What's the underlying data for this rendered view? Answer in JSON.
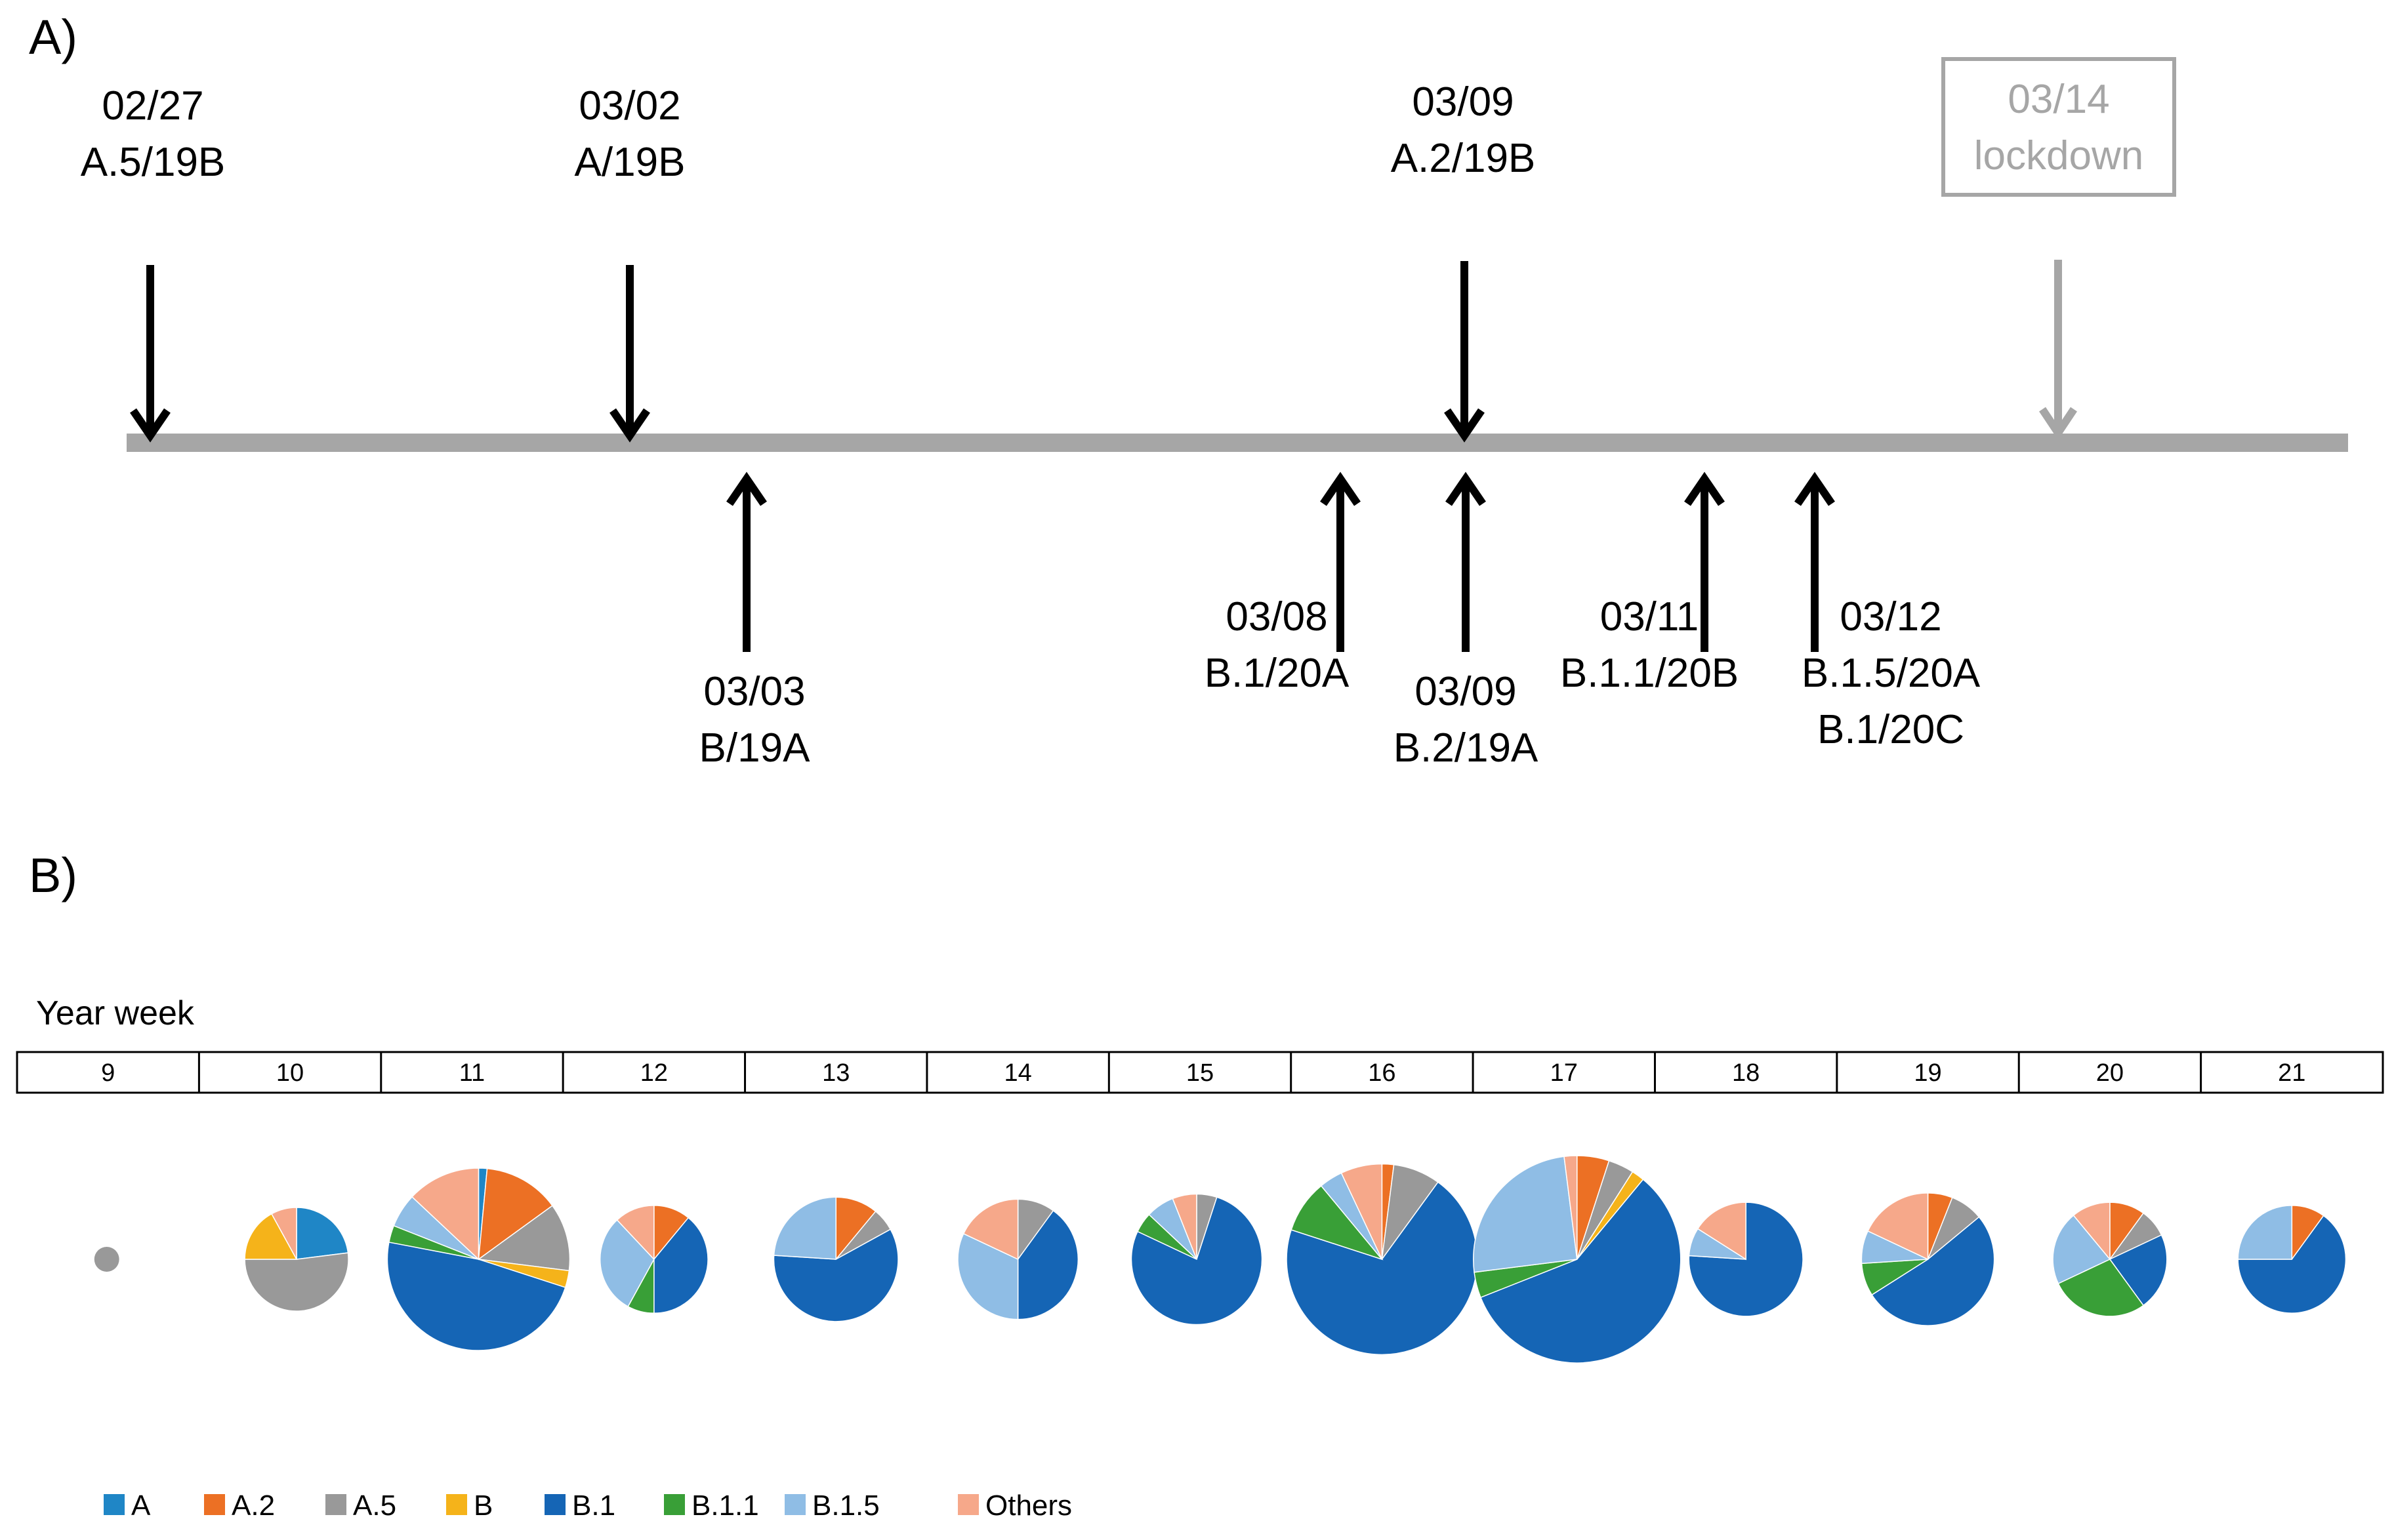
{
  "panel_a": {
    "label": "A)",
    "events_above": [
      {
        "date": "02/27",
        "lineage": "A.5/19B"
      },
      {
        "date": "03/02",
        "lineage": "A/19B"
      },
      {
        "date": "03/09",
        "lineage": "A.2/19B"
      }
    ],
    "lockdown": {
      "date": "03/14",
      "label": "lockdown"
    },
    "events_below": [
      {
        "date": "03/03",
        "lineage": "B/19A"
      },
      {
        "date": "03/08",
        "lineage": "B.1/20A"
      },
      {
        "date": "03/09",
        "lineage": "B.2/19A"
      },
      {
        "date": "03/11",
        "lineage": "B.1.1/20B"
      },
      {
        "date": "03/12",
        "lineage": "B.1.5/20A",
        "lineage2": "B.1/20C"
      }
    ]
  },
  "panel_b": {
    "label": "B)",
    "axis_title": "Year week",
    "weeks": [
      "9",
      "10",
      "11",
      "12",
      "13",
      "14",
      "15",
      "16",
      "17",
      "18",
      "19",
      "20",
      "21"
    ]
  },
  "colors": {
    "A": "#1f86c6",
    "A.2": "#ec7024",
    "A.5": "#999999",
    "B": "#f5b31a",
    "B.1": "#1565b5",
    "B.1.1": "#399f37",
    "B.1.5": "#8fbde5",
    "Others": "#f6a88a",
    "timeline": "#a6a6a6",
    "lockdown": "#a6a6a6"
  },
  "chart_data": {
    "type": "pie",
    "title": "",
    "xlabel": "Year week",
    "categories": [
      "9",
      "10",
      "11",
      "12",
      "13",
      "14",
      "15",
      "16",
      "17",
      "18",
      "19",
      "20",
      "21"
    ],
    "legend": [
      "A",
      "A.2",
      "A.5",
      "B",
      "B.1",
      "B.1.1",
      "B.1.5",
      "Others"
    ],
    "legend_position": "bottom-left",
    "note": "pie area proportional to number of sequences; shares in percent, clockwise from 12 o'clock",
    "pies": [
      {
        "week": "9",
        "relative_size": 0.12,
        "slices": [
          {
            "lineage": "A.5",
            "share": 100
          }
        ]
      },
      {
        "week": "10",
        "relative_size": 0.5,
        "slices": [
          {
            "lineage": "A",
            "share": 23
          },
          {
            "lineage": "A.5",
            "share": 52
          },
          {
            "lineage": "B",
            "share": 17
          },
          {
            "lineage": "Others",
            "share": 8
          }
        ]
      },
      {
        "week": "11",
        "relative_size": 0.88,
        "slices": [
          {
            "lineage": "A",
            "share": 1.5
          },
          {
            "lineage": "A.2",
            "share": 13.5
          },
          {
            "lineage": "A.5",
            "share": 12
          },
          {
            "lineage": "B",
            "share": 3
          },
          {
            "lineage": "B.1",
            "share": 48
          },
          {
            "lineage": "B.1.1",
            "share": 3
          },
          {
            "lineage": "B.1.5",
            "share": 6
          },
          {
            "lineage": "Others",
            "share": 13
          }
        ]
      },
      {
        "week": "12",
        "relative_size": 0.52,
        "slices": [
          {
            "lineage": "A.2",
            "share": 11
          },
          {
            "lineage": "B.1",
            "share": 39
          },
          {
            "lineage": "B.1.1",
            "share": 8
          },
          {
            "lineage": "B.1.5",
            "share": 30
          },
          {
            "lineage": "Others",
            "share": 12
          }
        ]
      },
      {
        "week": "13",
        "relative_size": 0.6,
        "slices": [
          {
            "lineage": "A.2",
            "share": 11
          },
          {
            "lineage": "A.5",
            "share": 6
          },
          {
            "lineage": "B.1",
            "share": 59
          },
          {
            "lineage": "B.1.5",
            "share": 24
          }
        ]
      },
      {
        "week": "14",
        "relative_size": 0.58,
        "slices": [
          {
            "lineage": "A.5",
            "share": 10
          },
          {
            "lineage": "B.1",
            "share": 40
          },
          {
            "lineage": "B.1.5",
            "share": 32
          },
          {
            "lineage": "Others",
            "share": 18
          }
        ]
      },
      {
        "week": "15",
        "relative_size": 0.63,
        "slices": [
          {
            "lineage": "A.5",
            "share": 5
          },
          {
            "lineage": "B.1",
            "share": 77
          },
          {
            "lineage": "B.1.1",
            "share": 5
          },
          {
            "lineage": "B.1.5",
            "share": 7
          },
          {
            "lineage": "Others",
            "share": 6
          }
        ]
      },
      {
        "week": "16",
        "relative_size": 0.92,
        "slices": [
          {
            "lineage": "A.2",
            "share": 2
          },
          {
            "lineage": "A.5",
            "share": 8
          },
          {
            "lineage": "B.1",
            "share": 70
          },
          {
            "lineage": "B.1.1",
            "share": 9
          },
          {
            "lineage": "B.1.5",
            "share": 4
          },
          {
            "lineage": "Others",
            "share": 7
          }
        ]
      },
      {
        "week": "17",
        "relative_size": 1.0,
        "slices": [
          {
            "lineage": "A.2",
            "share": 5
          },
          {
            "lineage": "A.5",
            "share": 4
          },
          {
            "lineage": "B",
            "share": 2
          },
          {
            "lineage": "B.1",
            "share": 58
          },
          {
            "lineage": "B.1.1",
            "share": 4
          },
          {
            "lineage": "B.1.5",
            "share": 25
          },
          {
            "lineage": "Others",
            "share": 2
          }
        ]
      },
      {
        "week": "18",
        "relative_size": 0.55,
        "slices": [
          {
            "lineage": "B.1",
            "share": 76
          },
          {
            "lineage": "B.1.5",
            "share": 8
          },
          {
            "lineage": "Others",
            "share": 16
          }
        ]
      },
      {
        "week": "19",
        "relative_size": 0.64,
        "slices": [
          {
            "lineage": "A.2",
            "share": 6
          },
          {
            "lineage": "A.5",
            "share": 8
          },
          {
            "lineage": "B.1",
            "share": 52
          },
          {
            "lineage": "B.1.1",
            "share": 8
          },
          {
            "lineage": "B.1.5",
            "share": 8
          },
          {
            "lineage": "Others",
            "share": 18
          }
        ]
      },
      {
        "week": "20",
        "relative_size": 0.55,
        "slices": [
          {
            "lineage": "A.2",
            "share": 10
          },
          {
            "lineage": "A.5",
            "share": 8
          },
          {
            "lineage": "B.1",
            "share": 22
          },
          {
            "lineage": "B.1.1",
            "share": 28
          },
          {
            "lineage": "B.1.5",
            "share": 21
          },
          {
            "lineage": "Others",
            "share": 11
          }
        ]
      },
      {
        "week": "21",
        "relative_size": 0.52,
        "slices": [
          {
            "lineage": "A.2",
            "share": 10
          },
          {
            "lineage": "B.1",
            "share": 65
          },
          {
            "lineage": "B.1.5",
            "share": 25
          }
        ]
      }
    ]
  }
}
